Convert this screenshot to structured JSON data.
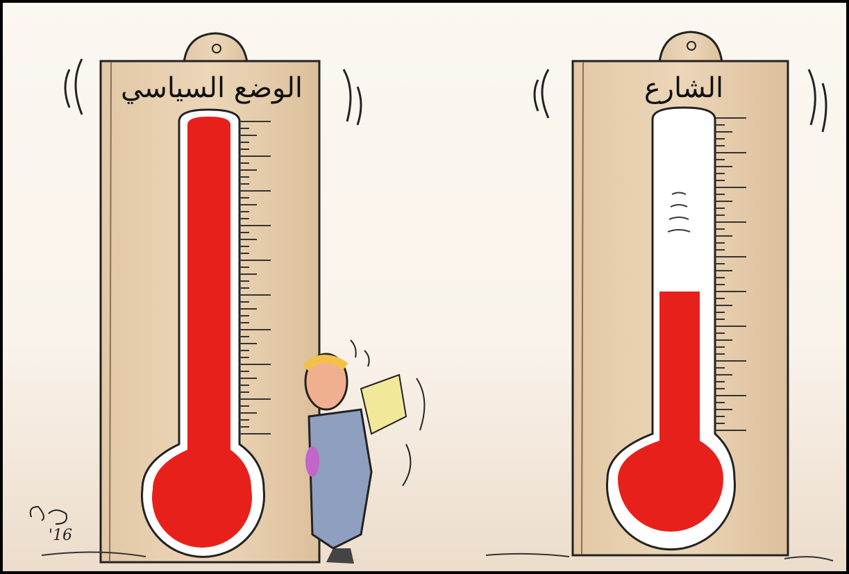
{
  "panels": [
    {
      "label": "الوضع السياسي"
    },
    {
      "label": "الشارع"
    }
  ],
  "signature": {
    "year": "'16"
  }
}
